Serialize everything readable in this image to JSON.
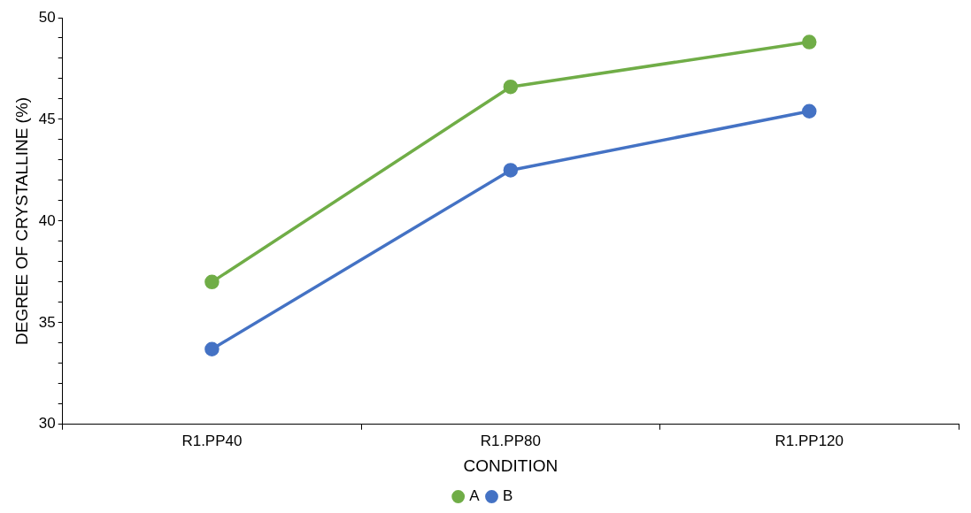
{
  "chart_data": {
    "type": "line",
    "xlabel": "CONDITION",
    "ylabel": "DEGREE OF CRYSTALLINE (%)",
    "categories": [
      "R1.PP40",
      "R1.PP80",
      "R1.PP120"
    ],
    "series": [
      {
        "name": "A",
        "color": "#70ad47",
        "values": [
          37.0,
          46.6,
          48.8
        ]
      },
      {
        "name": "B",
        "color": "#4472c4",
        "values": [
          33.7,
          42.5,
          45.4
        ]
      }
    ],
    "ylim": [
      30,
      50
    ],
    "yticks": [
      30,
      {
        "value": 31,
        "label": null
      },
      {
        "value": 32,
        "label": null
      },
      {
        "value": 33,
        "label": null
      },
      {
        "value": 34,
        "label": null
      },
      35,
      {
        "value": 36,
        "label": null
      },
      {
        "value": 37,
        "label": null
      },
      {
        "value": 38,
        "label": null
      },
      {
        "value": 39,
        "label": null
      },
      40,
      {
        "value": 41,
        "label": null
      },
      {
        "value": 42,
        "label": null
      },
      {
        "value": 43,
        "label": null
      },
      {
        "value": 44,
        "label": null
      },
      45,
      {
        "value": 46,
        "label": null
      },
      {
        "value": 47,
        "label": null
      },
      {
        "value": 48,
        "label": null
      },
      {
        "value": 49,
        "label": null
      },
      50
    ],
    "grid": false,
    "legend": "bottom",
    "marker": "circle",
    "line_style": "solid"
  }
}
